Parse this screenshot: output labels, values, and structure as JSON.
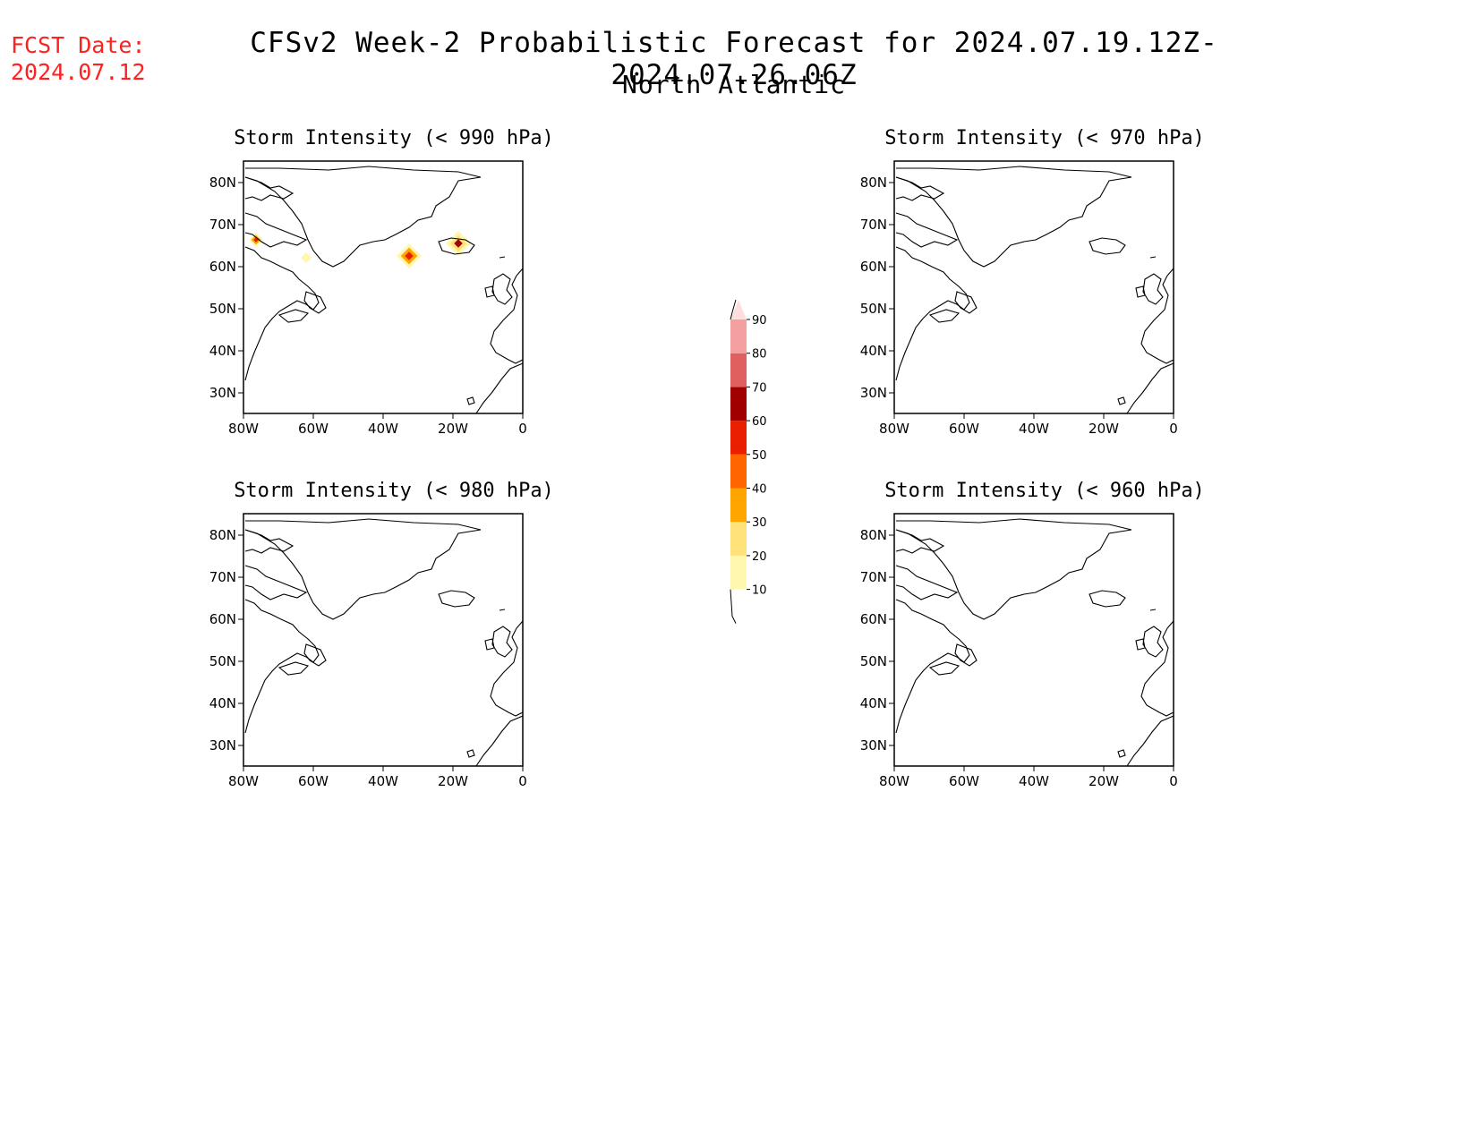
{
  "header": {
    "fcst_label": "FCST Date:",
    "fcst_date": "2024.07.12",
    "title": "CFSv2 Week-2 Probabilistic Forecast for 2024.07.19.12Z-2024.07.26.06Z",
    "region": "North Atlantic"
  },
  "axes": {
    "lon_labels": [
      "80W",
      "60W",
      "40W",
      "20W",
      "0"
    ],
    "lat_labels": [
      "80N",
      "70N",
      "60N",
      "50N",
      "40N",
      "30N"
    ]
  },
  "panels": [
    {
      "title": "Storm Intensity (< 990 hPa)",
      "has_data": true
    },
    {
      "title": "Storm Intensity (< 970 hPa)",
      "has_data": false
    },
    {
      "title": "Storm Intensity (< 980 hPa)",
      "has_data": false
    },
    {
      "title": "Storm Intensity (< 960 hPa)",
      "has_data": false
    }
  ],
  "colorbar": {
    "labels": [
      "10",
      "20",
      "30",
      "40",
      "50",
      "60",
      "70",
      "80",
      "90"
    ],
    "colors": [
      "#fff7b0",
      "#ffe27a",
      "#ffa500",
      "#ff6600",
      "#e82000",
      "#a00000",
      "#e06060",
      "#f4a0a0",
      "#ffdede"
    ]
  }
}
